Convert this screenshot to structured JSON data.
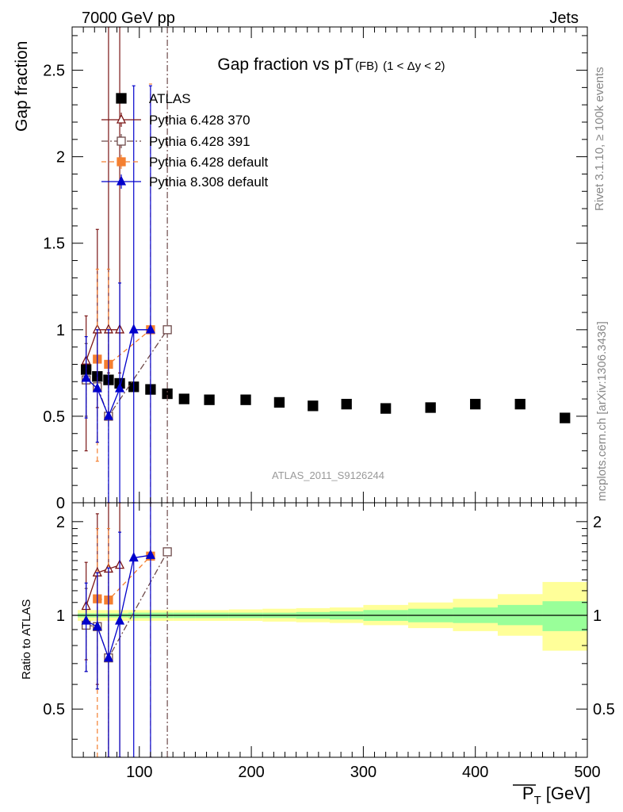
{
  "header": {
    "energy": "7000 GeV pp",
    "process": "Jets",
    "rivet_note": "Rivet 3.1.10, ≥ 100k events",
    "mcplots_note": "mcplots.cern.ch [arXiv:1306.3436]",
    "analysis_id": "ATLAS_2011_S9126244"
  },
  "chart_data": {
    "type": "scatter",
    "title_main": "Gap fraction vs pT",
    "title_sub": "(FB)",
    "title_range": "(1 < Δy < 2)",
    "xlabel": "P",
    "xlabel_sub": "T",
    "xlabel_unit": "[GeV]",
    "ylabel": "Gap fraction",
    "ratio_ylabel": "Ratio to ATLAS",
    "xlim": [
      40,
      500
    ],
    "ylim": [
      0,
      2.75
    ],
    "ratio_ylim": [
      0.35,
      2.3
    ],
    "xticks": [
      100,
      200,
      300,
      400,
      500
    ],
    "xtick_labels": [
      "100",
      "200",
      "300",
      "400",
      "500"
    ],
    "yticks": [
      0,
      0.5,
      1,
      1.5,
      2,
      2.5
    ],
    "ytick_labels": [
      "0",
      "0.5",
      "1",
      "1.5",
      "2",
      "2.5"
    ],
    "ratio_yticks": [
      0.5,
      1,
      2
    ],
    "ratio_ytick_labels": [
      "0.5",
      "1",
      "2"
    ],
    "legend_position": "top-left",
    "series": [
      {
        "name": "ATLAS",
        "role": "data",
        "color": "#000000",
        "marker": "square-filled",
        "x": [
          52.5,
          62.5,
          72.5,
          82.5,
          95,
          110,
          125,
          140,
          162.5,
          195,
          225,
          255,
          285,
          320,
          360,
          400,
          440,
          480
        ],
        "y": [
          0.77,
          0.73,
          0.71,
          0.69,
          0.67,
          0.655,
          0.63,
          0.6,
          0.595,
          0.595,
          0.58,
          0.56,
          0.57,
          0.545,
          0.55,
          0.57,
          0.57,
          0.49
        ]
      },
      {
        "name": "Pythia 6.428 370",
        "color": "#7a1515",
        "marker": "triangle-open",
        "line": "solid",
        "x": [
          52.5,
          62.5,
          72.5,
          82.5
        ],
        "y": [
          0.82,
          1.0,
          1.0,
          1.0
        ],
        "yerr_low": [
          0.3,
          0.55,
          0.75,
          0.75
        ],
        "yerr_high": [
          1.08,
          1.58,
          2.75,
          2.75
        ],
        "ratio": [
          1.07,
          1.37,
          1.41,
          1.45
        ],
        "ratio_low": [
          0.72,
          0.6,
          0.35,
          0.35
        ],
        "ratio_high": [
          1.48,
          2.12,
          2.3,
          2.3
        ]
      },
      {
        "name": "Pythia 6.428 391",
        "color": "#6e4a4a",
        "marker": "square-open",
        "line": "dash-dot",
        "x": [
          52.5,
          62.5,
          72.5,
          125
        ],
        "y": [
          0.71,
          0.67,
          0.5,
          1.0
        ],
        "yerr_low": [
          0.5,
          0.35,
          0.0,
          0.0
        ],
        "yerr_high": [
          0.92,
          1.0,
          1.0,
          2.75
        ],
        "ratio": [
          0.93,
          0.92,
          0.73,
          1.6
        ],
        "ratio_low": [
          0.66,
          0.58,
          0.35,
          0.35
        ],
        "ratio_high": [
          1.22,
          1.37,
          1.42,
          2.3
        ]
      },
      {
        "name": "Pythia 6.428 default",
        "color": "#f47f30",
        "marker": "square-filled",
        "line": "dashed",
        "x": [
          62.5,
          72.5,
          110
        ],
        "y": [
          0.83,
          0.8,
          1.0
        ],
        "yerr_low": [
          0.24,
          0.48,
          0.0
        ],
        "yerr_high": [
          1.35,
          1.35,
          2.42
        ],
        "ratio": [
          1.13,
          1.12,
          1.55
        ],
        "ratio_low": [
          0.35,
          0.35,
          0.35
        ],
        "ratio_high": [
          1.9,
          1.9,
          2.3
        ]
      },
      {
        "name": "Pythia 8.308 default",
        "color": "#0000cc",
        "marker": "triangle-filled",
        "line": "solid",
        "x": [
          52.5,
          62.5,
          72.5,
          82.5,
          95,
          110
        ],
        "y": [
          0.72,
          0.66,
          0.5,
          0.66,
          1.0,
          1.0
        ],
        "yerr_low": [
          0.49,
          0.35,
          0.0,
          0.0,
          0.0,
          0.0
        ],
        "yerr_high": [
          0.96,
          1.0,
          1.0,
          1.27,
          2.41,
          2.41
        ],
        "ratio": [
          0.96,
          0.92,
          0.73,
          0.96,
          1.53,
          1.56
        ],
        "ratio_low": [
          0.66,
          0.58,
          0.35,
          0.35,
          0.35,
          0.35
        ],
        "ratio_high": [
          1.27,
          1.37,
          1.42,
          1.85,
          2.3,
          2.3
        ]
      }
    ],
    "ratio_bands": {
      "edges": [
        45,
        60,
        70,
        80,
        90,
        100,
        120,
        130,
        150,
        180,
        210,
        240,
        270,
        300,
        340,
        380,
        420,
        460,
        500
      ],
      "inner_low": [
        0.985,
        0.985,
        0.985,
        0.985,
        0.98,
        0.98,
        0.98,
        0.98,
        0.98,
        0.98,
        0.98,
        0.975,
        0.97,
        0.96,
        0.95,
        0.945,
        0.93,
        0.89
      ],
      "inner_high": [
        1.015,
        1.015,
        1.015,
        1.015,
        1.02,
        1.02,
        1.02,
        1.02,
        1.02,
        1.02,
        1.02,
        1.025,
        1.03,
        1.04,
        1.05,
        1.06,
        1.08,
        1.11
      ],
      "outer_low": [
        0.96,
        0.96,
        0.96,
        0.96,
        0.96,
        0.96,
        0.96,
        0.96,
        0.96,
        0.96,
        0.955,
        0.95,
        0.945,
        0.93,
        0.91,
        0.89,
        0.86,
        0.77
      ],
      "outer_high": [
        1.04,
        1.04,
        1.04,
        1.04,
        1.04,
        1.04,
        1.04,
        1.04,
        1.04,
        1.045,
        1.05,
        1.055,
        1.06,
        1.08,
        1.1,
        1.13,
        1.17,
        1.28
      ],
      "inner_color": "#99ff99",
      "outer_color": "#ffff99"
    }
  }
}
